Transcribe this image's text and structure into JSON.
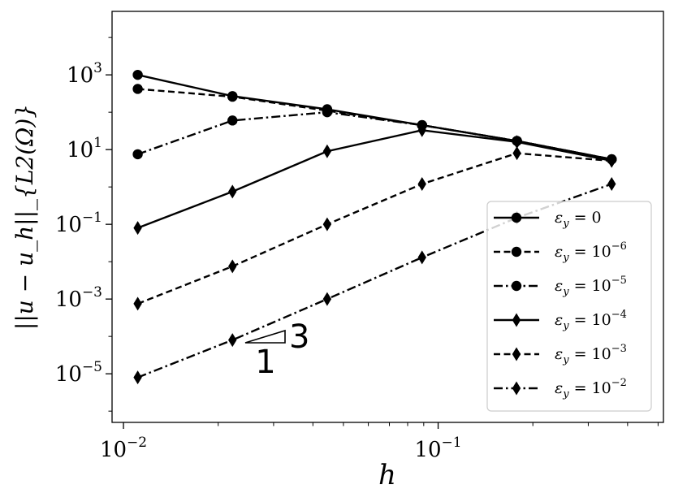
{
  "chart_data": {
    "type": "line",
    "x_scale": "log",
    "y_scale": "log",
    "xlim": [
      0.0092,
      0.52
    ],
    "ylim": [
      5e-07,
      50000
    ],
    "xlabel": "h",
    "ylabel": "||u − u_h||_{L2(Ω)}",
    "x_ticks": [
      {
        "base": "10",
        "exp": "−2",
        "value": 0.01
      },
      {
        "base": "10",
        "exp": "−1",
        "value": 0.1
      }
    ],
    "y_ticks": [
      {
        "base": "10",
        "exp": "3",
        "value": 1000
      },
      {
        "base": "10",
        "exp": "1",
        "value": 10
      },
      {
        "base": "10",
        "exp": "−1",
        "value": 0.1
      },
      {
        "base": "10",
        "exp": "−3",
        "value": 0.001
      },
      {
        "base": "10",
        "exp": "−5",
        "value": 1e-05
      }
    ],
    "x": [
      0.0111,
      0.0222,
      0.0444,
      0.0889,
      0.178,
      0.356
    ],
    "series": [
      {
        "name": "ε_y = 0",
        "eps": "ε",
        "sub": "y",
        "rel": "= 0",
        "sup": "",
        "marker": "circle",
        "dash": "solid",
        "values": [
          1000,
          270,
          120,
          45,
          17,
          5.5
        ]
      },
      {
        "name": "ε_y = 10^−6",
        "eps": "ε",
        "sub": "y",
        "rel": "= 10",
        "sup": "−6",
        "marker": "circle",
        "dash": "dashed",
        "values": [
          420,
          260,
          110,
          45,
          17,
          5.5
        ]
      },
      {
        "name": "ε_y = 10^−5",
        "eps": "ε",
        "sub": "y",
        "rel": "= 10",
        "sup": "−5",
        "marker": "circle",
        "dash": "dashdot",
        "values": [
          7.5,
          60,
          100,
          45,
          17,
          5.5
        ]
      },
      {
        "name": "ε_y = 10^−4",
        "eps": "ε",
        "sub": "y",
        "rel": "= 10",
        "sup": "−4",
        "marker": "diamond",
        "dash": "solid",
        "values": [
          0.08,
          0.75,
          9,
          33,
          16,
          5
        ]
      },
      {
        "name": "ε_y = 10^−3",
        "eps": "ε",
        "sub": "y",
        "rel": "= 10",
        "sup": "−3",
        "marker": "diamond",
        "dash": "dashed",
        "values": [
          0.00075,
          0.0075,
          0.1,
          1.2,
          8,
          5
        ]
      },
      {
        "name": "ε_y = 10^−2",
        "eps": "ε",
        "sub": "y",
        "rel": "= 10",
        "sup": "−2",
        "marker": "diamond",
        "dash": "dashdot",
        "values": [
          8e-06,
          8e-05,
          0.001,
          0.013,
          0.15,
          1.2
        ]
      }
    ],
    "slope_triangle": {
      "run_label": "1",
      "rise_label": "3"
    },
    "grid": false,
    "legend_position": "lower-right"
  }
}
